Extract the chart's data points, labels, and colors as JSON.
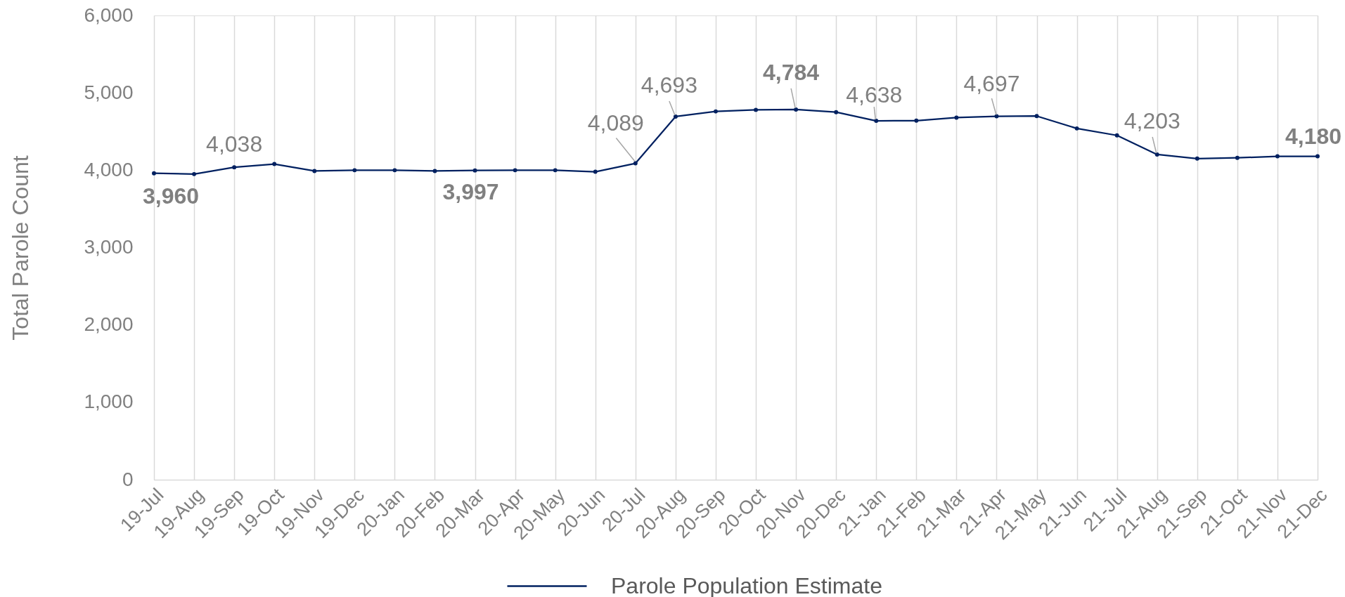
{
  "chart_data": {
    "type": "line",
    "ylabel": "Total Parole Count",
    "categories": [
      "19-Jul",
      "19-Aug",
      "19-Sep",
      "19-Oct",
      "19-Nov",
      "19-Dec",
      "20-Jan",
      "20-Feb",
      "20-Mar",
      "20-Apr",
      "20-May",
      "20-Jun",
      "20-Jul",
      "20-Aug",
      "20-Sep",
      "20-Oct",
      "20-Nov",
      "20-Dec",
      "21-Jan",
      "21-Feb",
      "21-Mar",
      "21-Apr",
      "21-May",
      "21-Jun",
      "21-Jul",
      "21-Aug",
      "21-Sep",
      "21-Oct",
      "21-Nov",
      "21-Dec"
    ],
    "series": [
      {
        "name": "Parole Population Estimate",
        "color": "#002060",
        "values": [
          3960,
          3950,
          4038,
          4080,
          3990,
          4000,
          4000,
          3990,
          3997,
          4000,
          4000,
          3980,
          4089,
          4693,
          4760,
          4780,
          4784,
          4750,
          4638,
          4640,
          4680,
          4697,
          4700,
          4540,
          4450,
          4203,
          4150,
          4160,
          4180,
          4180
        ],
        "value_labels": [
          "3,960",
          null,
          "4,038",
          null,
          null,
          null,
          null,
          null,
          "3,997",
          null,
          null,
          null,
          "4,089",
          "4,693",
          null,
          null,
          "4,784",
          null,
          "4,638",
          null,
          null,
          "4,697",
          null,
          null,
          null,
          "4,203",
          null,
          null,
          null,
          "4,180"
        ]
      }
    ],
    "ylim": [
      0,
      6000
    ],
    "yticks": [
      0,
      {
        "value": 1000,
        "label": "1,000"
      },
      {
        "value": 2000,
        "label": "2,000"
      },
      {
        "value": 3000,
        "label": "3,000"
      },
      {
        "value": 4000,
        "label": "4,000"
      },
      {
        "value": 5000,
        "label": "5,000"
      },
      {
        "value": 6000,
        "label": "6,000"
      }
    ],
    "grid": "x",
    "legend": "bottom",
    "marker": "circle",
    "line_style": "solid"
  }
}
